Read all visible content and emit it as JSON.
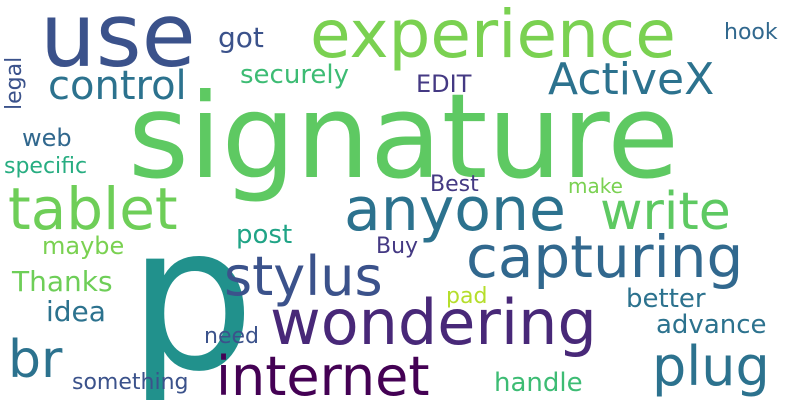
{
  "words": [
    {
      "text": "signature",
      "color": "#5ec962"
    },
    {
      "text": "p",
      "color": "#21918c"
    },
    {
      "text": "use",
      "color": "#3b528b"
    },
    {
      "text": "experience",
      "color": "#7ad151"
    },
    {
      "text": "wondering",
      "color": "#482878"
    },
    {
      "text": "anyone",
      "color": "#2c728e"
    },
    {
      "text": "capturing",
      "color": "#31688e"
    },
    {
      "text": "tablet",
      "color": "#6ece58"
    },
    {
      "text": "internet",
      "color": "#440154"
    },
    {
      "text": "stylus",
      "color": "#3b528b"
    },
    {
      "text": "plug",
      "color": "#2c728e"
    },
    {
      "text": "write",
      "color": "#5ec962"
    },
    {
      "text": "br",
      "color": "#2c728e"
    },
    {
      "text": "ActiveX",
      "color": "#2c728e"
    },
    {
      "text": "control",
      "color": "#2c728e"
    },
    {
      "text": "securely",
      "color": "#3dbc74"
    },
    {
      "text": "EDIT",
      "color": "#443983"
    },
    {
      "text": "got",
      "color": "#3b528b"
    },
    {
      "text": "hook",
      "color": "#31688e"
    },
    {
      "text": "legal",
      "color": "#3b528b"
    },
    {
      "text": "web",
      "color": "#31688e"
    },
    {
      "text": "specific",
      "color": "#27ad81"
    },
    {
      "text": "Best",
      "color": "#443983"
    },
    {
      "text": "make",
      "color": "#7ad151"
    },
    {
      "text": "post",
      "color": "#20a486"
    },
    {
      "text": "maybe",
      "color": "#7ad151"
    },
    {
      "text": "Buy",
      "color": "#443983"
    },
    {
      "text": "Thanks",
      "color": "#6ece58"
    },
    {
      "text": "pad",
      "color": "#b5de2b"
    },
    {
      "text": "better",
      "color": "#2c728e"
    },
    {
      "text": "idea",
      "color": "#2c728e"
    },
    {
      "text": "advance",
      "color": "#2c728e"
    },
    {
      "text": "need",
      "color": "#3b528b"
    },
    {
      "text": "something",
      "color": "#3b528b"
    },
    {
      "text": "handle",
      "color": "#3dbc74"
    }
  ]
}
